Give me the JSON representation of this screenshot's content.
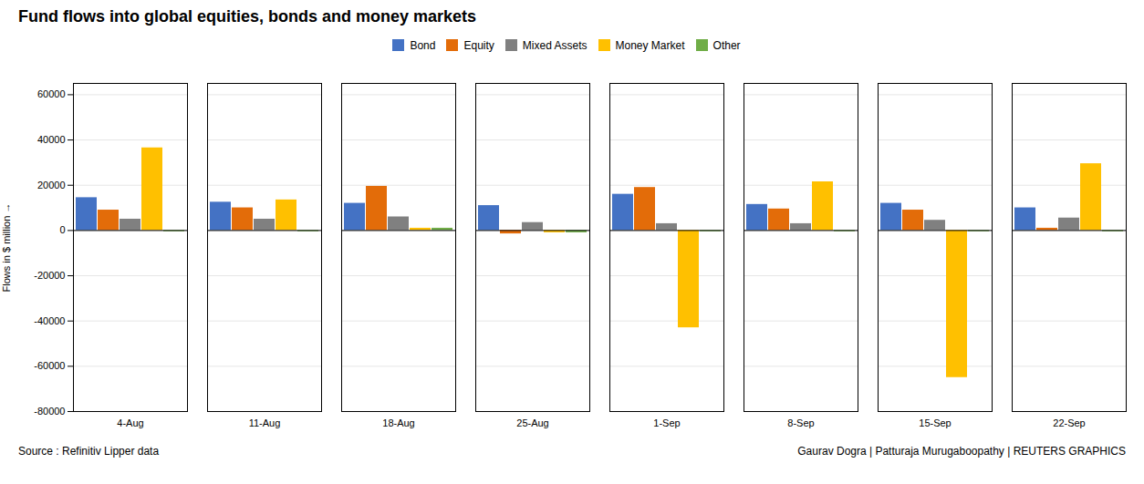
{
  "chart_data": {
    "type": "bar",
    "title": "Fund flows into global equities, bonds and money markets",
    "categories": [
      "4-Aug",
      "11-Aug",
      "18-Aug",
      "25-Aug",
      "1-Sep",
      "8-Sep",
      "15-Sep",
      "22-Sep"
    ],
    "series": [
      {
        "name": "Bond",
        "color": "#4472C4",
        "values": [
          14500,
          12500,
          12000,
          11000,
          16000,
          11500,
          12000,
          10000
        ]
      },
      {
        "name": "Equity",
        "color": "#E36C09",
        "values": [
          9000,
          10000,
          19500,
          -1500,
          19000,
          9500,
          9000,
          1000
        ]
      },
      {
        "name": "Mixed Assets",
        "color": "#808080",
        "values": [
          5000,
          5000,
          6000,
          3500,
          3000,
          3000,
          4500,
          5500
        ]
      },
      {
        "name": "Money Market",
        "color": "#FFC000",
        "values": [
          36500,
          13500,
          1000,
          -1000,
          -43000,
          21500,
          -65000,
          29500
        ]
      },
      {
        "name": "Other",
        "color": "#70AD47",
        "values": [
          -500,
          -500,
          1000,
          -1000,
          -500,
          -500,
          -500,
          -500
        ]
      }
    ],
    "ylabel": "Flows in $ million",
    "ylim": [
      -80000,
      65000
    ],
    "yticks": [
      -80000,
      -60000,
      -40000,
      -20000,
      0,
      20000,
      40000,
      60000
    ],
    "grid": true,
    "legend": "top",
    "annotations": [
      "Source : Refinitiv Lipper data",
      "Gaurav Dogra | Patturaja Murugaboopathy | REUTERS GRAPHICS"
    ]
  }
}
